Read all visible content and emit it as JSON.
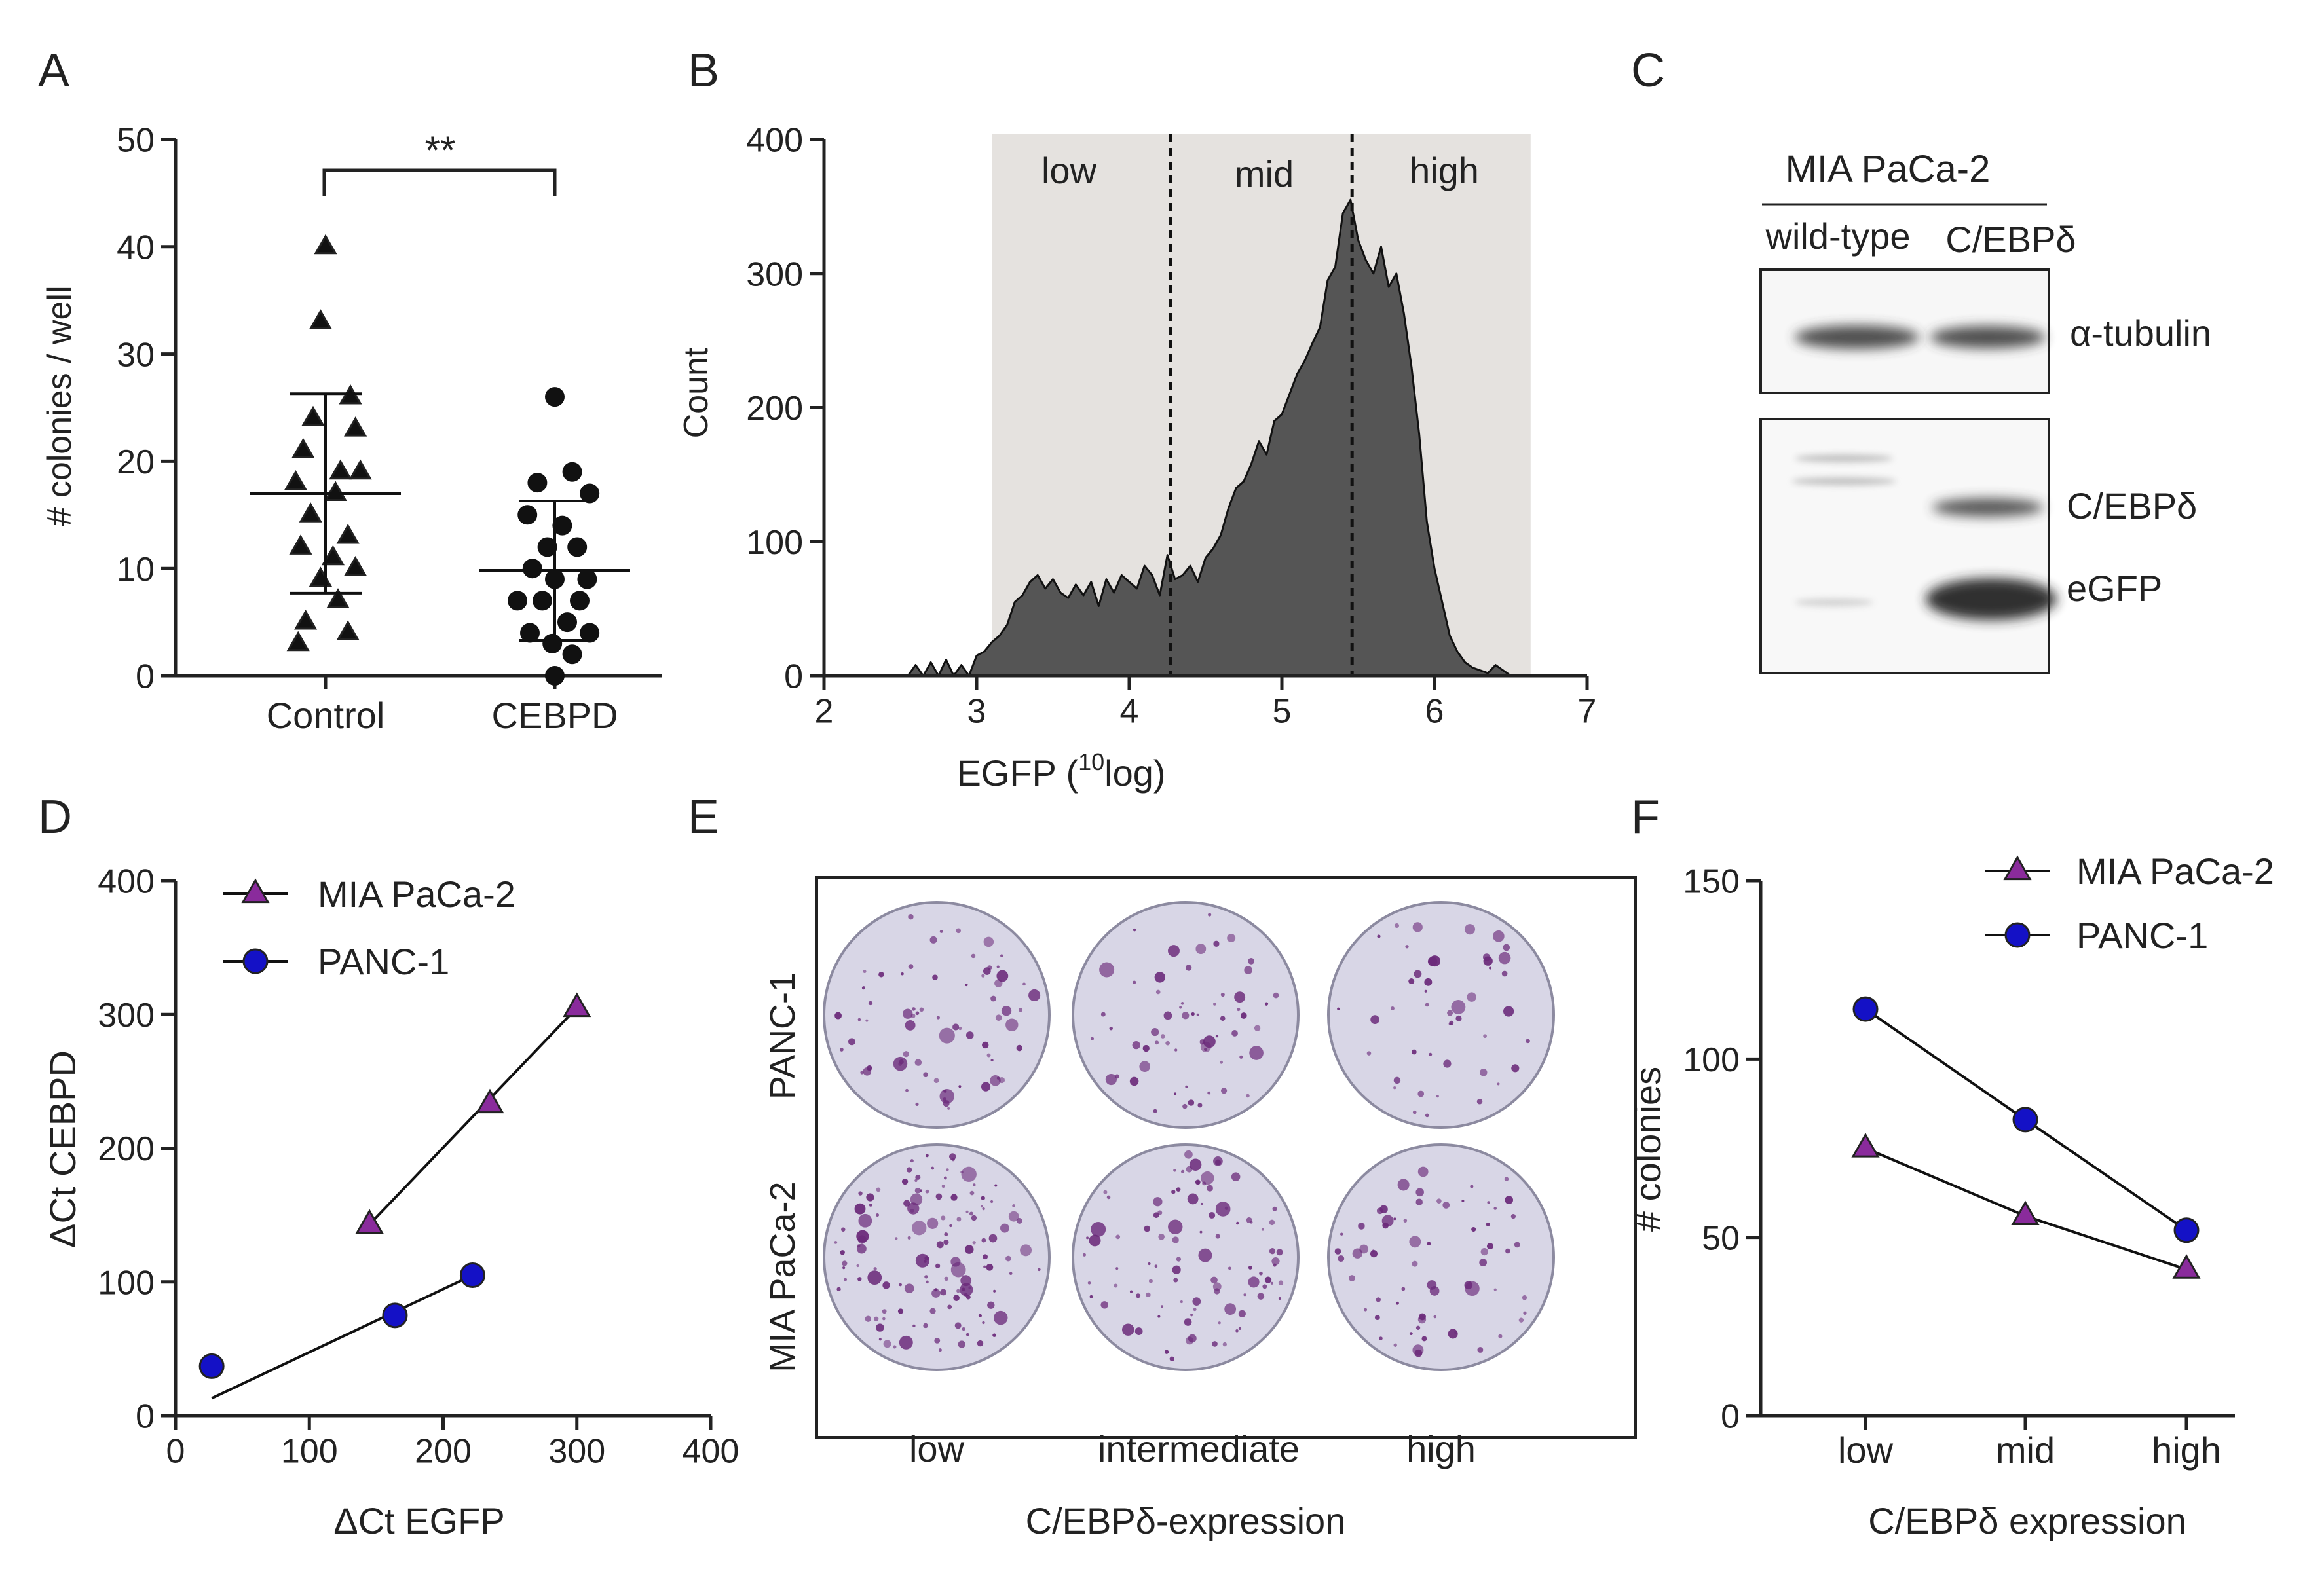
{
  "chart_data": [
    {
      "panel": "A",
      "type": "scatter",
      "title": "",
      "xlabel": "",
      "ylabel": "# colonies / well",
      "ylim": [
        0,
        50
      ],
      "yticks": [
        0,
        10,
        20,
        30,
        40,
        50
      ],
      "categories": [
        "Control",
        "CEBPD"
      ],
      "significance": "**",
      "series": [
        {
          "name": "Control",
          "marker": "triangle",
          "points": [
            [
              0.0,
              40
            ],
            [
              -0.02,
              33
            ],
            [
              0.1,
              26
            ],
            [
              -0.05,
              24
            ],
            [
              0.12,
              23
            ],
            [
              -0.09,
              21
            ],
            [
              0.06,
              19
            ],
            [
              0.14,
              19
            ],
            [
              -0.12,
              18
            ],
            [
              0.04,
              17
            ],
            [
              -0.06,
              15
            ],
            [
              0.09,
              13
            ],
            [
              -0.1,
              12
            ],
            [
              0.03,
              11
            ],
            [
              0.12,
              10
            ],
            [
              -0.02,
              9
            ],
            [
              0.05,
              7
            ],
            [
              -0.08,
              5
            ],
            [
              0.09,
              4
            ],
            [
              -0.11,
              3
            ]
          ],
          "mean": 17,
          "sd_low": 7.7,
          "sd_high": 26.3
        },
        {
          "name": "CEBPD",
          "marker": "circle",
          "points": [
            [
              0.0,
              26
            ],
            [
              0.07,
              19
            ],
            [
              -0.07,
              18
            ],
            [
              0.14,
              17
            ],
            [
              -0.11,
              15
            ],
            [
              0.03,
              14
            ],
            [
              0.09,
              12
            ],
            [
              -0.03,
              12
            ],
            [
              -0.09,
              10
            ],
            [
              0.13,
              9
            ],
            [
              0.0,
              9
            ],
            [
              -0.15,
              7
            ],
            [
              0.1,
              7
            ],
            [
              -0.05,
              7
            ],
            [
              0.05,
              5
            ],
            [
              -0.1,
              4
            ],
            [
              0.14,
              4
            ],
            [
              -0.01,
              3
            ],
            [
              0.07,
              2
            ],
            [
              0.0,
              0
            ]
          ],
          "mean": 9.8,
          "sd_low": 3.3,
          "sd_high": 16.3
        }
      ]
    },
    {
      "panel": "B",
      "type": "area",
      "title": "",
      "xlabel": "EGFP (",
      "xlabel_sup": "10",
      "xlabel_tail": "log)",
      "ylabel": "Count",
      "xlim": [
        2,
        7
      ],
      "ylim": [
        0,
        400
      ],
      "xticks": [
        2,
        3,
        4,
        5,
        6,
        7
      ],
      "yticks": [
        0,
        100,
        200,
        300,
        400
      ],
      "gate_range": [
        3.1,
        6.63
      ],
      "gate_cuts": [
        4.27,
        5.46
      ],
      "gates": [
        "low",
        "mid",
        "high"
      ],
      "x": [
        2.55,
        2.6,
        2.65,
        2.7,
        2.75,
        2.8,
        2.85,
        2.9,
        2.95,
        3.0,
        3.05,
        3.1,
        3.15,
        3.2,
        3.25,
        3.3,
        3.35,
        3.4,
        3.45,
        3.5,
        3.55,
        3.6,
        3.65,
        3.7,
        3.75,
        3.8,
        3.85,
        3.9,
        3.95,
        4.0,
        4.05,
        4.1,
        4.15,
        4.2,
        4.25,
        4.3,
        4.35,
        4.4,
        4.45,
        4.5,
        4.55,
        4.6,
        4.65,
        4.7,
        4.75,
        4.8,
        4.85,
        4.9,
        4.95,
        5.0,
        5.05,
        5.1,
        5.15,
        5.2,
        5.25,
        5.3,
        5.35,
        5.4,
        5.45,
        5.5,
        5.55,
        5.6,
        5.65,
        5.7,
        5.75,
        5.8,
        5.85,
        5.9,
        5.95,
        6.0,
        6.05,
        6.1,
        6.15,
        6.2,
        6.25,
        6.3,
        6.35,
        6.4,
        6.45,
        6.5
      ],
      "values": [
        0,
        8,
        0,
        10,
        0,
        12,
        0,
        8,
        0,
        15,
        18,
        25,
        30,
        38,
        55,
        60,
        70,
        75,
        65,
        72,
        62,
        58,
        68,
        60,
        70,
        52,
        72,
        62,
        75,
        70,
        65,
        82,
        75,
        60,
        90,
        72,
        75,
        82,
        70,
        88,
        95,
        105,
        125,
        140,
        145,
        158,
        175,
        165,
        190,
        195,
        210,
        225,
        235,
        248,
        260,
        295,
        305,
        345,
        355,
        325,
        310,
        300,
        320,
        290,
        300,
        270,
        230,
        180,
        115,
        80,
        55,
        30,
        18,
        10,
        6,
        4,
        2,
        8,
        4,
        0
      ]
    },
    {
      "panel": "D",
      "type": "scatter",
      "title": "",
      "xlabel": "ΔCt  EGFP",
      "ylabel": "ΔCt  CEBPD",
      "xlim": [
        0,
        400
      ],
      "ylim": [
        0,
        400
      ],
      "xticks": [
        0,
        100,
        200,
        300,
        400
      ],
      "yticks": [
        0,
        100,
        200,
        300,
        400
      ],
      "series": [
        {
          "name": "MIA PaCa-2",
          "marker": "triangle",
          "color": "#8a2b9c",
          "x": [
            145,
            235,
            300
          ],
          "y": [
            143,
            233,
            305
          ],
          "fit": [
            [
              145,
              143
            ],
            [
              300,
              305
            ]
          ]
        },
        {
          "name": "PANC-1",
          "marker": "circle",
          "color": "#1411c6",
          "x": [
            27,
            164,
            222
          ],
          "y": [
            37,
            75,
            105
          ],
          "fit": [
            [
              27,
              13
            ],
            [
              222,
              105
            ]
          ]
        }
      ]
    },
    {
      "panel": "F",
      "type": "line",
      "title": "",
      "xlabel": "C/EBPδ expression",
      "ylabel": "# colonies",
      "categories": [
        "low",
        "mid",
        "high"
      ],
      "ylim": [
        0,
        150
      ],
      "yticks": [
        0,
        50,
        100,
        150
      ],
      "series": [
        {
          "name": "MIA PaCa-2",
          "marker": "triangle",
          "color": "#8a2b9c",
          "values": [
            75,
            56,
            41
          ]
        },
        {
          "name": "PANC-1",
          "marker": "circle",
          "color": "#1411c6",
          "values": [
            114,
            83,
            52
          ]
        }
      ]
    }
  ],
  "panel_labels": {
    "a": "A",
    "b": "B",
    "c": "C",
    "d": "D",
    "e": "E",
    "f": "F"
  },
  "panel_c": {
    "cell_line": "MIA PaCa-2",
    "lanes": [
      "wild-type",
      "C/EBPδ"
    ],
    "bands": [
      "α-tubulin",
      "C/EBPδ",
      "eGFP"
    ]
  },
  "panel_e": {
    "rows": [
      "PANC-1",
      "MIA PaCa-2"
    ],
    "columns": [
      "low",
      "intermediate",
      "high"
    ],
    "xlabel": "C/EBPδ-expression"
  },
  "colors": {
    "axis": "#222222",
    "hist_fill": "#555555",
    "gate_bg": "#e5e2df",
    "purple": "#8a2b9c",
    "blue": "#1411c6",
    "plate_bg": "#d8d6e6",
    "colony": "#6b2a7a"
  }
}
